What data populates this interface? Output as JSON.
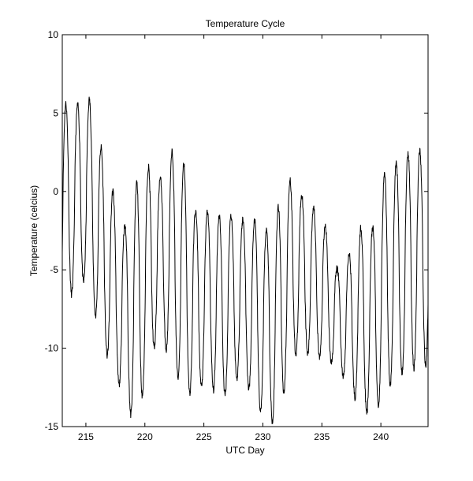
{
  "chart_data": {
    "type": "line",
    "title": "Temperature Cycle",
    "xlabel": "UTC Day",
    "ylabel": "Temperature (celcius)",
    "xlim": [
      213,
      244
    ],
    "ylim": [
      -15,
      10
    ],
    "xticks": [
      215,
      220,
      225,
      230,
      235,
      240
    ],
    "yticks": [
      -15,
      -10,
      -5,
      0,
      5,
      10
    ],
    "grid": false,
    "legend": "none",
    "line_color": "#000000",
    "daily_extremes": [
      {
        "day": 213.3,
        "min": -7.5,
        "max": 5.6
      },
      {
        "day": 214.3,
        "min": -5.6,
        "max": 5.5
      },
      {
        "day": 215.3,
        "min": -6.0,
        "max": 5.9
      },
      {
        "day": 216.3,
        "min": -9.8,
        "max": 2.8
      },
      {
        "day": 217.3,
        "min": -11.2,
        "max": 0.0
      },
      {
        "day": 218.3,
        "min": -13.5,
        "max": -2.3
      },
      {
        "day": 219.3,
        "min": -15.0,
        "max": 0.6
      },
      {
        "day": 220.3,
        "min": -11.0,
        "max": 1.6
      },
      {
        "day": 221.3,
        "min": -9.0,
        "max": 0.8
      },
      {
        "day": 222.3,
        "min": -11.2,
        "max": 2.5
      },
      {
        "day": 223.3,
        "min": -12.6,
        "max": 1.8
      },
      {
        "day": 224.3,
        "min": -13.2,
        "max": -1.3
      },
      {
        "day": 225.3,
        "min": -11.7,
        "max": -1.3
      },
      {
        "day": 226.3,
        "min": -13.6,
        "max": -1.5
      },
      {
        "day": 227.3,
        "min": -12.4,
        "max": -1.5
      },
      {
        "day": 228.3,
        "min": -11.5,
        "max": -1.8
      },
      {
        "day": 229.3,
        "min": -13.7,
        "max": -1.8
      },
      {
        "day": 230.3,
        "min": -14.3,
        "max": -2.5
      },
      {
        "day": 231.3,
        "min": -15.0,
        "max": -1.0
      },
      {
        "day": 232.3,
        "min": -10.5,
        "max": 0.8
      },
      {
        "day": 233.3,
        "min": -10.3,
        "max": -0.2
      },
      {
        "day": 234.3,
        "min": -10.5,
        "max": -1.0
      },
      {
        "day": 235.3,
        "min": -10.7,
        "max": -2.2
      },
      {
        "day": 236.3,
        "min": -11.1,
        "max": -5.0
      },
      {
        "day": 237.3,
        "min": -12.5,
        "max": -4.0
      },
      {
        "day": 238.3,
        "min": -13.8,
        "max": -2.3
      },
      {
        "day": 239.3,
        "min": -14.5,
        "max": -2.4
      },
      {
        "day": 240.3,
        "min": -12.8,
        "max": 1.2
      },
      {
        "day": 241.3,
        "min": -11.8,
        "max": 1.8
      },
      {
        "day": 242.3,
        "min": -11.4,
        "max": 2.5
      },
      {
        "day": 243.3,
        "min": -11.1,
        "max": 2.6
      }
    ]
  }
}
